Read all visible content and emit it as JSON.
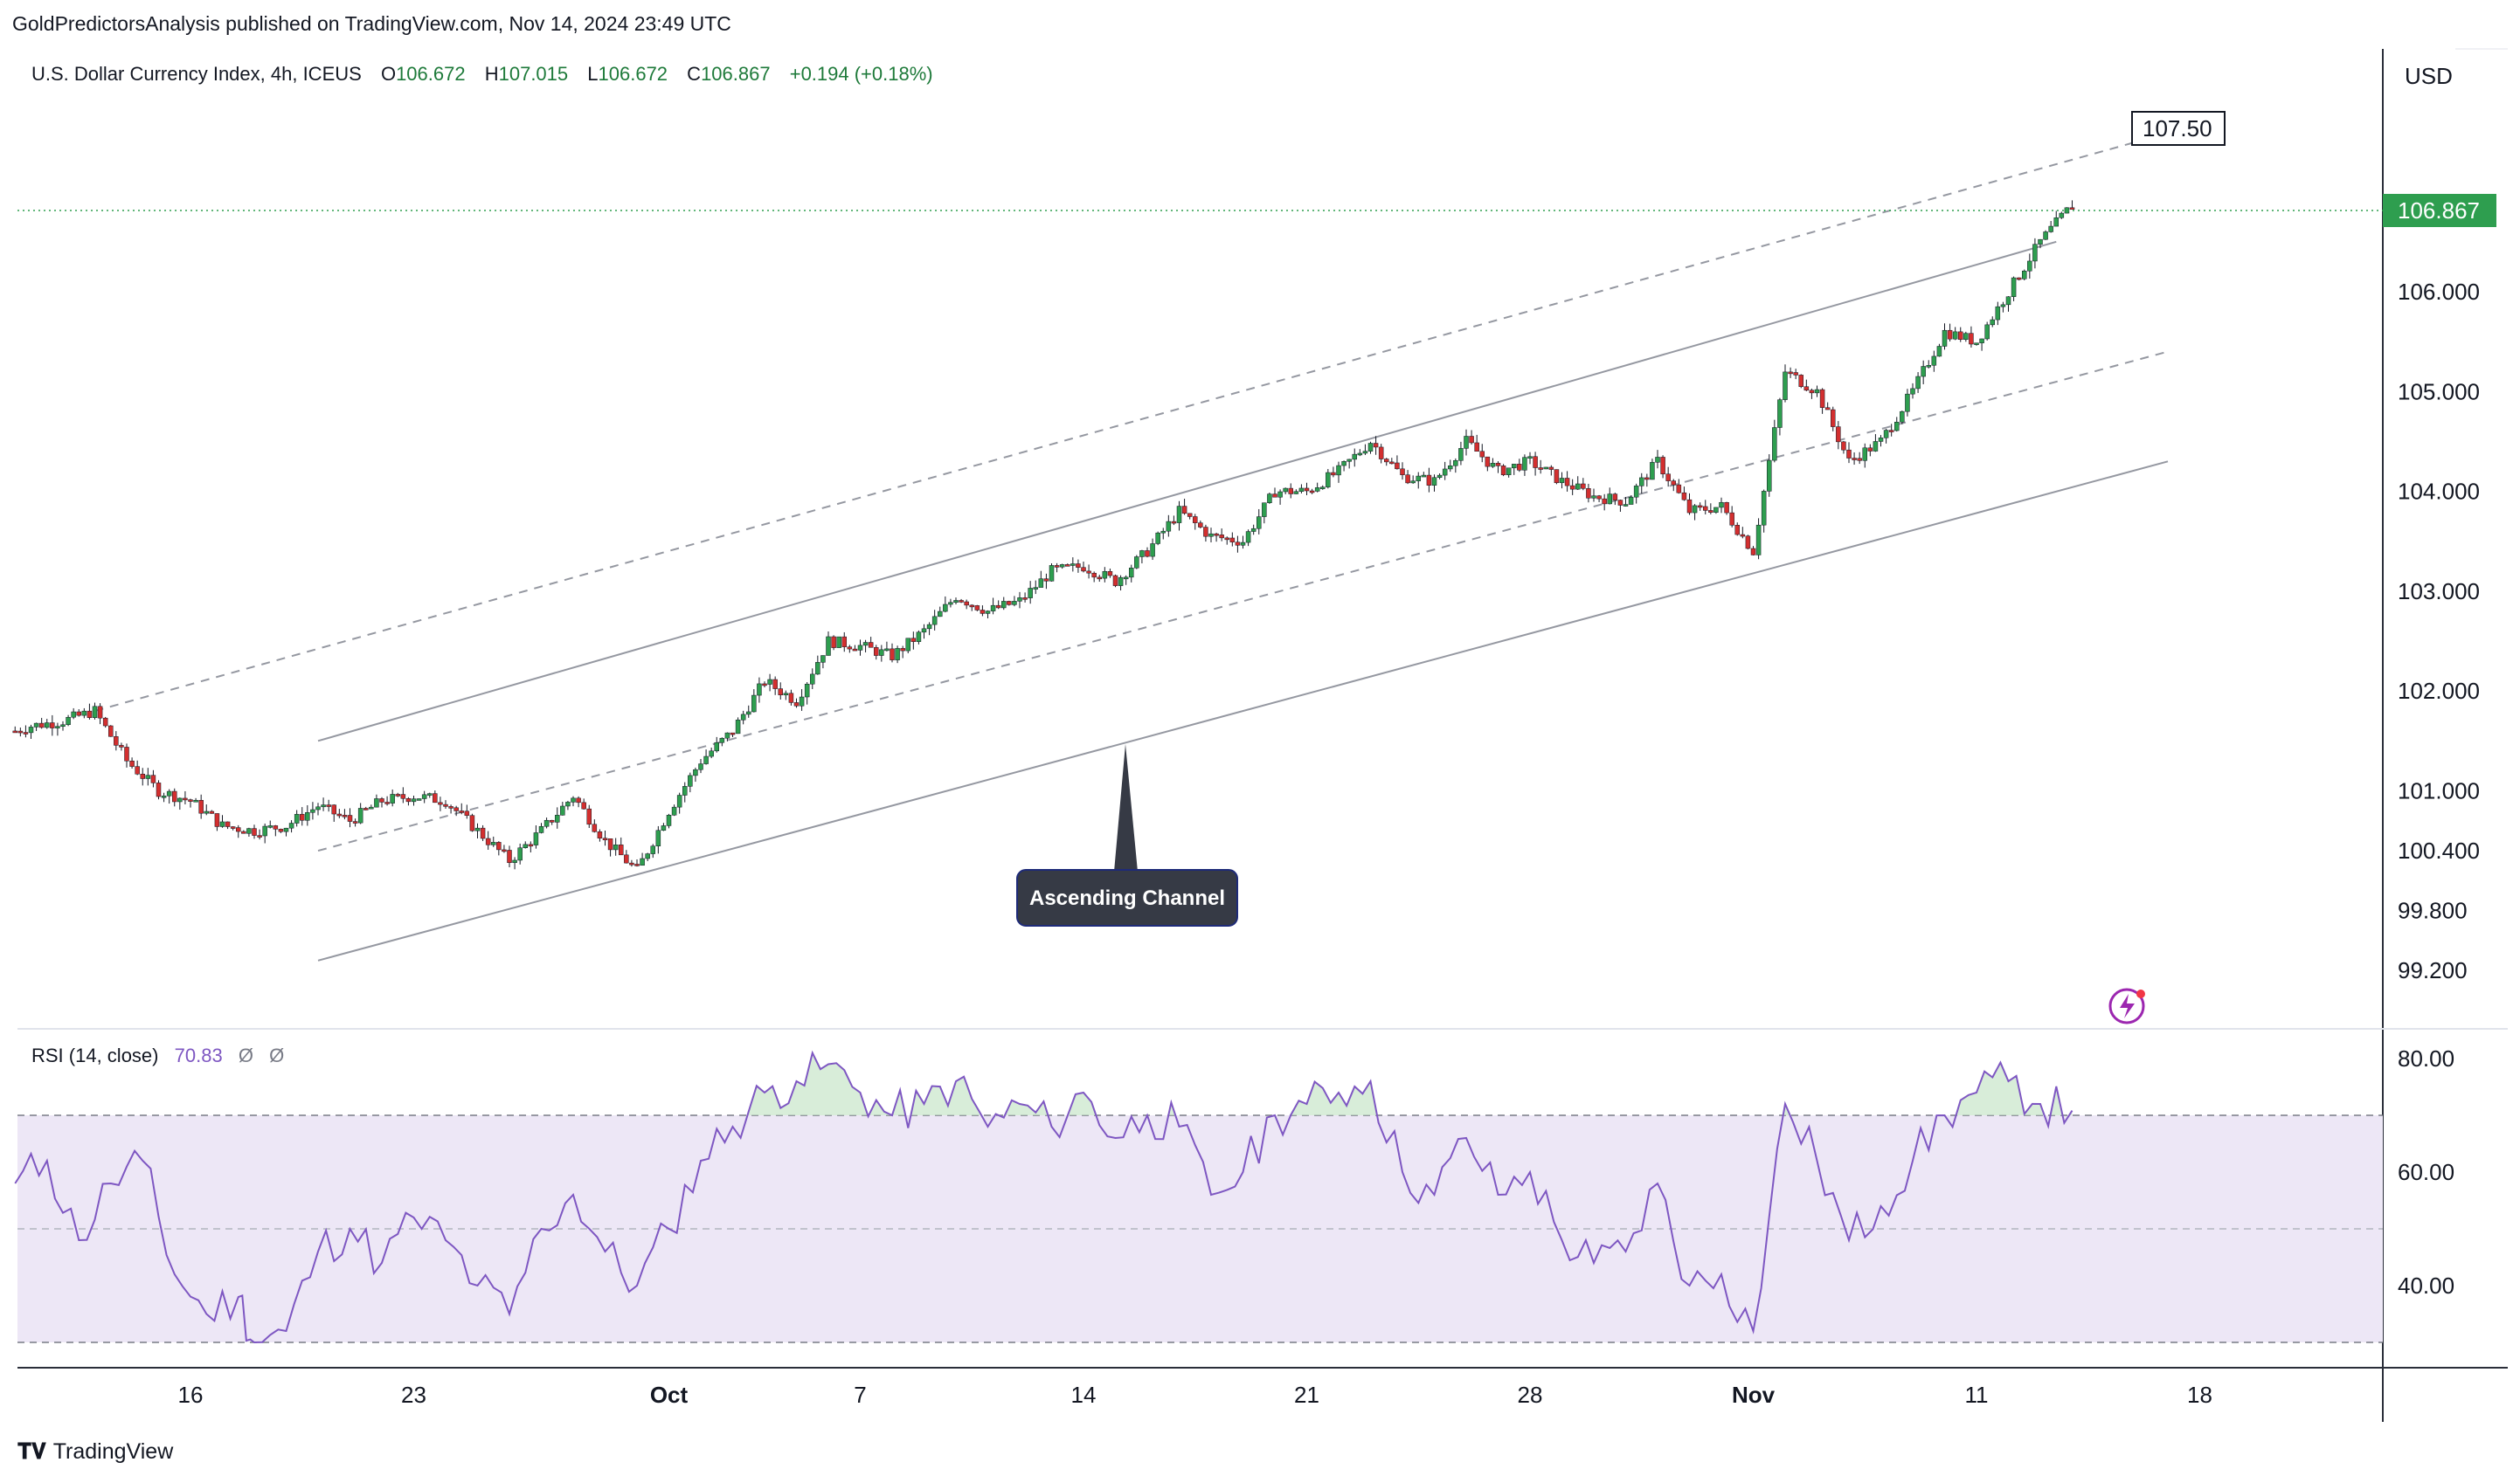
{
  "publisher": "GoldPredictorsAnalysis published on TradingView.com, Nov 14, 2024 23:49 UTC",
  "symbol_line": {
    "name": "U.S. Dollar Currency Index, 4h, ICEUS",
    "open_label": "O",
    "open": "106.672",
    "high_label": "H",
    "high": "107.015",
    "low_label": "L",
    "low": "106.672",
    "close_label": "C",
    "close": "106.867",
    "change": "+0.194 (+0.18%)"
  },
  "currency": "USD",
  "last_price_label": "106.867",
  "target_label": "107.50",
  "annotation": "Ascending Channel",
  "rsi": {
    "label": "RSI (14, close)",
    "value": "70.83",
    "extra1": "Ø",
    "extra2": "Ø"
  },
  "branding": "TradingView",
  "colors": {
    "up": "#26a69a",
    "up_body": "#2e9e4f",
    "down": "#ef5350",
    "down_body": "#d32f2f",
    "rsi_line": "#7e57c2",
    "rsi_band": "#ede7f6",
    "price_tag": "#2e9e4f",
    "annotation_bg": "#363a45"
  },
  "chart_data": [
    {
      "type": "candlestick",
      "title": "U.S. Dollar Currency Index, 4h, ICEUS",
      "y_ticks": [
        "106.000",
        "105.000",
        "104.000",
        "103.000",
        "102.000",
        "101.000",
        "100.400",
        "99.800",
        "99.200"
      ],
      "y_tick_values": [
        106.0,
        105.0,
        104.0,
        103.0,
        102.0,
        101.0,
        100.4,
        99.8,
        99.2
      ],
      "x_ticks": [
        "16",
        "23",
        "Oct",
        "7",
        "14",
        "21",
        "28",
        "Nov",
        "11",
        "18"
      ],
      "x_tick_days": [
        0,
        7,
        15,
        21,
        28,
        35,
        42,
        49,
        56,
        63
      ],
      "daily_close": [
        [
          -5.5,
          101.6
        ],
        [
          -5,
          101.65
        ],
        [
          -4,
          101.7
        ],
        [
          -3,
          101.8
        ],
        [
          -2,
          101.3
        ],
        [
          -1,
          101.0
        ],
        [
          0,
          100.9
        ],
        [
          1,
          100.65
        ],
        [
          2,
          100.6
        ],
        [
          3,
          100.65
        ],
        [
          4,
          100.85
        ],
        [
          5,
          100.7
        ],
        [
          6,
          100.9
        ],
        [
          7,
          100.95
        ],
        [
          8,
          100.9
        ],
        [
          9,
          100.6
        ],
        [
          10,
          100.3
        ],
        [
          11,
          100.6
        ],
        [
          12,
          100.95
        ],
        [
          13,
          100.5
        ],
        [
          14,
          100.2
        ],
        [
          15,
          100.8
        ],
        [
          16,
          101.3
        ],
        [
          17,
          101.6
        ],
        [
          18,
          102.1
        ],
        [
          19,
          101.9
        ],
        [
          20,
          102.5
        ],
        [
          21,
          102.45
        ],
        [
          22,
          102.35
        ],
        [
          23,
          102.6
        ],
        [
          24,
          102.95
        ],
        [
          25,
          102.8
        ],
        [
          26,
          102.9
        ],
        [
          27,
          103.2
        ],
        [
          28,
          103.25
        ],
        [
          29,
          103.1
        ],
        [
          30,
          103.4
        ],
        [
          31,
          103.8
        ],
        [
          32,
          103.55
        ],
        [
          33,
          103.5
        ],
        [
          34,
          104.0
        ],
        [
          35,
          104.0
        ],
        [
          36,
          104.2
        ],
        [
          37,
          104.5
        ],
        [
          38,
          104.15
        ],
        [
          39,
          104.1
        ],
        [
          40,
          104.5
        ],
        [
          41,
          104.2
        ],
        [
          42,
          104.3
        ],
        [
          43,
          104.1
        ],
        [
          44,
          103.95
        ],
        [
          45,
          103.9
        ],
        [
          46,
          104.3
        ],
        [
          47,
          103.8
        ],
        [
          48,
          103.85
        ],
        [
          49,
          103.4
        ],
        [
          50,
          105.2
        ],
        [
          51,
          105.0
        ],
        [
          52,
          104.3
        ],
        [
          53,
          104.5
        ],
        [
          54,
          105.0
        ],
        [
          55,
          105.6
        ],
        [
          56,
          105.5
        ],
        [
          57,
          106.0
        ],
        [
          58,
          106.5
        ],
        [
          59,
          106.87
        ]
      ],
      "channel_upper_line": [
        [
          4,
          101.5
        ],
        [
          58.5,
          106.5
        ]
      ],
      "channel_lower_line": [
        [
          4,
          99.3
        ],
        [
          62,
          104.3
        ]
      ],
      "channel_mid_dashed": [
        [
          4,
          100.4
        ],
        [
          62,
          105.4
        ]
      ],
      "channel_outer_dashed": [
        [
          -3,
          101.8
        ],
        [
          61,
          107.5
        ]
      ]
    },
    {
      "type": "line",
      "title": "RSI (14, close)",
      "y_ticks": [
        "80.00",
        "60.00",
        "40.00"
      ],
      "y_tick_values": [
        80,
        60,
        40
      ],
      "bands": [
        30,
        50,
        70
      ],
      "values": [
        [
          -5.5,
          58
        ],
        [
          -4.5,
          62
        ],
        [
          -3.5,
          48
        ],
        [
          -2.5,
          58
        ],
        [
          -1.5,
          62
        ],
        [
          -0.5,
          42
        ],
        [
          0.5,
          35
        ],
        [
          1.5,
          38
        ],
        [
          2,
          30
        ],
        [
          3,
          32
        ],
        [
          4,
          46
        ],
        [
          5,
          50
        ],
        [
          6,
          44
        ],
        [
          7,
          52
        ],
        [
          8,
          48
        ],
        [
          9,
          40
        ],
        [
          10,
          35
        ],
        [
          11,
          50
        ],
        [
          12,
          56
        ],
        [
          13,
          46
        ],
        [
          14,
          40
        ],
        [
          15,
          50
        ],
        [
          16,
          62
        ],
        [
          17,
          68
        ],
        [
          18,
          74
        ],
        [
          19,
          76
        ],
        [
          20,
          79
        ],
        [
          21,
          74
        ],
        [
          22,
          70
        ],
        [
          23,
          72
        ],
        [
          24,
          76
        ],
        [
          25,
          68
        ],
        [
          26,
          72
        ],
        [
          27,
          68
        ],
        [
          28,
          74
        ],
        [
          29,
          66
        ],
        [
          30,
          70
        ],
        [
          31,
          68
        ],
        [
          32,
          56
        ],
        [
          33,
          60
        ],
        [
          34,
          70
        ],
        [
          35,
          72
        ],
        [
          36,
          74
        ],
        [
          37,
          76
        ],
        [
          38,
          60
        ],
        [
          39,
          56
        ],
        [
          40,
          66
        ],
        [
          41,
          56
        ],
        [
          42,
          60
        ],
        [
          43,
          48
        ],
        [
          44,
          44
        ],
        [
          45,
          46
        ],
        [
          46,
          58
        ],
        [
          47,
          40
        ],
        [
          48,
          42
        ],
        [
          49,
          32
        ],
        [
          50,
          72
        ],
        [
          51,
          62
        ],
        [
          52,
          48
        ],
        [
          53,
          54
        ],
        [
          54,
          62
        ],
        [
          55,
          70
        ],
        [
          56,
          74
        ],
        [
          57,
          76
        ],
        [
          58,
          72
        ],
        [
          59,
          70.83
        ]
      ]
    }
  ]
}
